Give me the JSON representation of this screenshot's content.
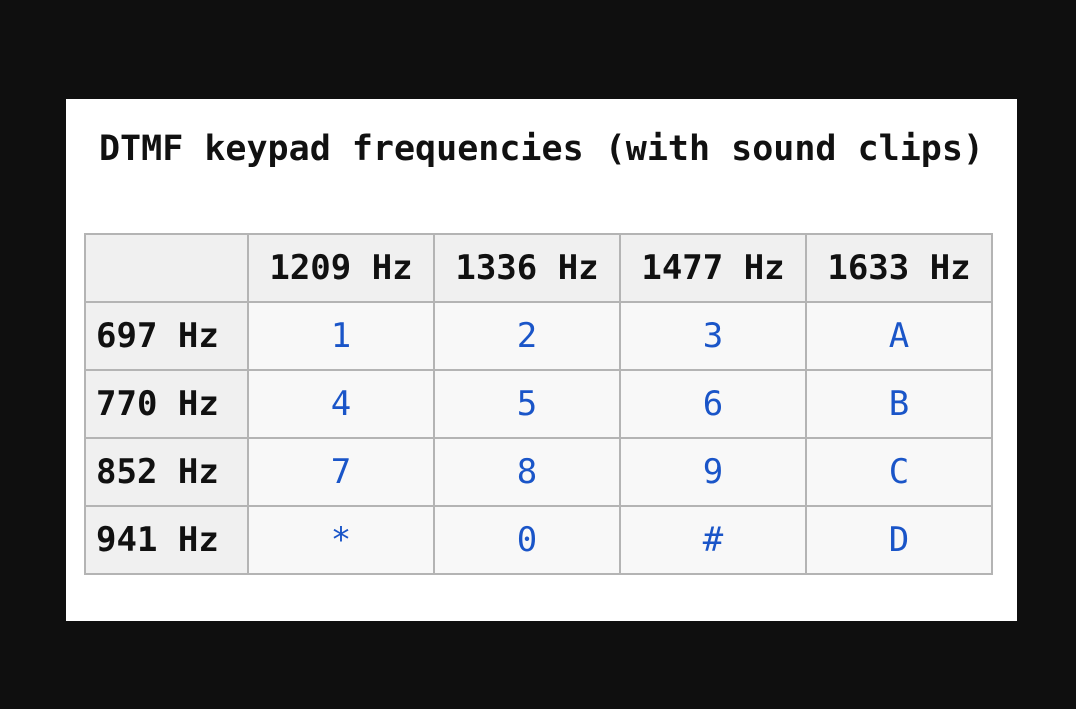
{
  "table": {
    "caption": "DTMF keypad frequencies (with sound clips)",
    "corner": "",
    "column_headers": [
      "1209 Hz",
      "1336 Hz",
      "1477 Hz",
      "1633 Hz"
    ],
    "rows": [
      {
        "header": "697 Hz",
        "keys": [
          "1",
          "2",
          "3",
          "A"
        ]
      },
      {
        "header": "770 Hz",
        "keys": [
          "4",
          "5",
          "6",
          "B"
        ]
      },
      {
        "header": "852 Hz",
        "keys": [
          "7",
          "8",
          "9",
          "C"
        ]
      },
      {
        "header": "941 Hz",
        "keys": [
          "*",
          "0",
          "#",
          "D"
        ]
      }
    ]
  },
  "colors": {
    "background": "#0f0f0f",
    "panel": "#ffffff",
    "header_fill": "#f0f0f0",
    "cell_fill": "#f8f8f8",
    "border": "#b4b4b4",
    "key_link": "#1a55c8"
  }
}
